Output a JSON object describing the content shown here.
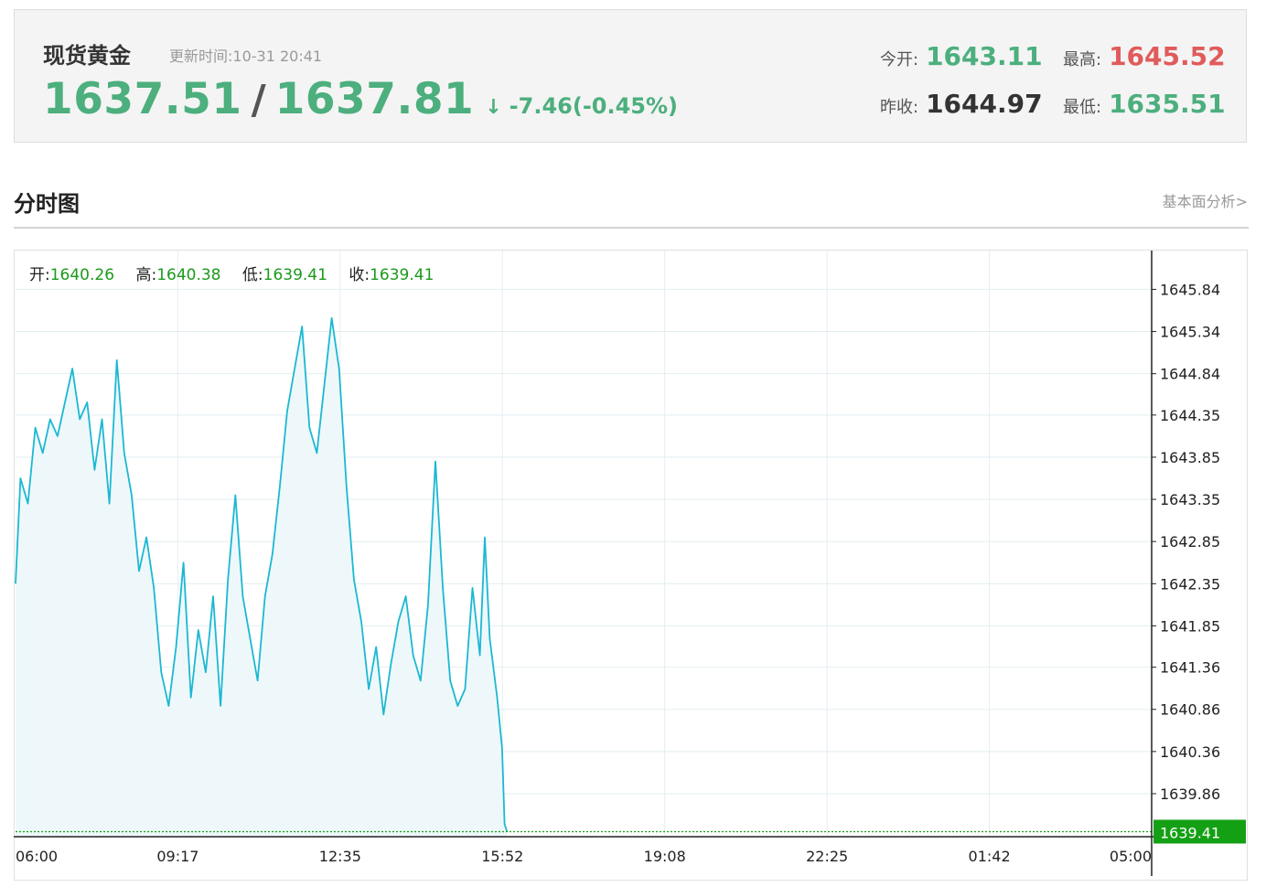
{
  "header": {
    "title": "现货黄金",
    "update_label": "更新时间:",
    "update_time": "10-31 20:41",
    "bid": "1637.51",
    "slash": "/",
    "ask": "1637.81",
    "arrow": "↓",
    "change": "-7.46(-0.45%)",
    "open_label": "今开:",
    "open": "1643.11",
    "high_label": "最高:",
    "high": "1645.52",
    "prev_close_label": "昨收:",
    "prev_close": "1644.97",
    "low_label": "最低:",
    "low": "1635.51"
  },
  "section": {
    "title": "分时图",
    "link": "基本面分析>"
  },
  "ohlc": {
    "open_label": "开:",
    "open": "1640.26",
    "high_label": "高:",
    "high": "1640.38",
    "low_label": "低:",
    "low": "1639.41",
    "close_label": "收:",
    "close": "1639.41"
  },
  "colors": {
    "line": "#1bb8d2",
    "fill": "#eef8fb",
    "grid": "#e3eef0",
    "current_price_bg": "#14a014",
    "up": "#e05b5b",
    "down": "#4caf7d"
  },
  "chart_data": {
    "type": "area",
    "x_ticks": [
      "06:00",
      "09:17",
      "12:35",
      "15:52",
      "19:08",
      "22:25",
      "01:42",
      "05:00"
    ],
    "y_ticks": [
      "1645.84",
      "1645.34",
      "1644.84",
      "1644.35",
      "1643.85",
      "1643.35",
      "1642.85",
      "1642.35",
      "1641.85",
      "1641.36",
      "1640.86",
      "1640.36",
      "1639.86"
    ],
    "ylim": [
      1639.35,
      1646.3
    ],
    "current_price": "1639.41",
    "x_hours": [
      0,
      0.1,
      0.25,
      0.4,
      0.55,
      0.7,
      0.85,
      1.0,
      1.15,
      1.3,
      1.45,
      1.6,
      1.75,
      1.9,
      2.05,
      2.2,
      2.35,
      2.5,
      2.65,
      2.8,
      2.95,
      3.1,
      3.25,
      3.4,
      3.55,
      3.7,
      3.85,
      4.0,
      4.15,
      4.3,
      4.45,
      4.6,
      4.75,
      4.9,
      5.05,
      5.2,
      5.35,
      5.5,
      5.65,
      5.8,
      5.95,
      6.1,
      6.25,
      6.4,
      6.55,
      6.7,
      6.85,
      7.0,
      7.15,
      7.3,
      7.45,
      7.6,
      7.75,
      7.9,
      8.05,
      8.2,
      8.35,
      8.5,
      8.65,
      8.8,
      8.95,
      9.1,
      9.25,
      9.4,
      9.5,
      9.6,
      9.75,
      9.85,
      9.9,
      9.95
    ],
    "values": [
      1642.35,
      1643.6,
      1643.3,
      1644.2,
      1643.9,
      1644.3,
      1644.1,
      1644.5,
      1644.9,
      1644.3,
      1644.5,
      1643.7,
      1644.3,
      1643.3,
      1645.0,
      1643.9,
      1643.4,
      1642.5,
      1642.9,
      1642.3,
      1641.3,
      1640.9,
      1641.6,
      1642.6,
      1641.0,
      1641.8,
      1641.3,
      1642.2,
      1640.9,
      1642.4,
      1643.4,
      1642.2,
      1641.7,
      1641.2,
      1642.2,
      1642.7,
      1643.5,
      1644.4,
      1644.9,
      1645.4,
      1644.2,
      1643.9,
      1644.7,
      1645.5,
      1644.9,
      1643.5,
      1642.4,
      1641.9,
      1641.1,
      1641.6,
      1640.8,
      1641.4,
      1641.9,
      1642.2,
      1641.5,
      1641.2,
      1642.1,
      1643.8,
      1642.3,
      1641.2,
      1640.9,
      1641.1,
      1642.3,
      1641.5,
      1642.9,
      1641.7,
      1641.0,
      1640.4,
      1639.5,
      1639.41
    ]
  }
}
